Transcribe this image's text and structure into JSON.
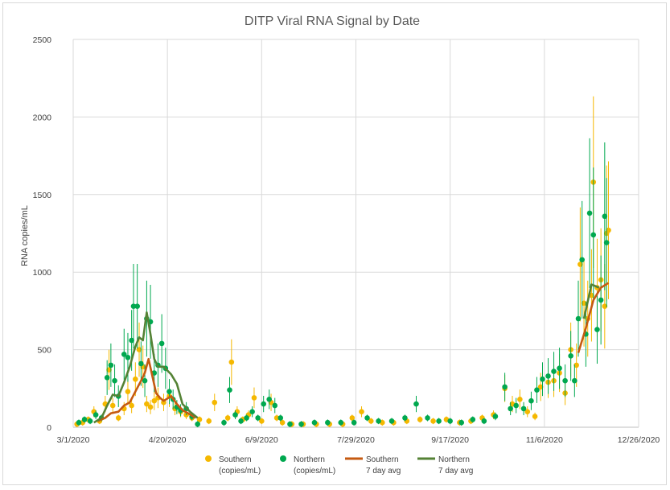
{
  "chart_data": {
    "type": "scatter",
    "title": "DITP Viral RNA Signal by Date",
    "xlabel": "",
    "ylabel": "RNA copies/mL",
    "ylim": [
      0,
      2500
    ],
    "xlim": [
      "2020-03-01",
      "2020-12-26"
    ],
    "grid": true,
    "legend_position": "bottom",
    "x_ticks": [
      "3/1/2020",
      "4/20/2020",
      "6/9/2020",
      "7/29/2020",
      "9/17/2020",
      "11/6/2020",
      "12/26/2020"
    ],
    "y_ticks": [
      "0",
      "500",
      "1000",
      "1500",
      "2000",
      "2500"
    ],
    "colors": {
      "southern": "#F5B800",
      "northern": "#00A84F",
      "southern_avg": "#C55A11",
      "northern_avg": "#548235"
    },
    "series": [
      {
        "name": "Southern (copies/mL)",
        "kind": "points",
        "points": [
          [
            "2020-03-03",
            20
          ],
          [
            "2020-03-06",
            30
          ],
          [
            "2020-03-09",
            50
          ],
          [
            "2020-03-12",
            100
          ],
          [
            "2020-03-15",
            40
          ],
          [
            "2020-03-18",
            150
          ],
          [
            "2020-03-20",
            370
          ],
          [
            "2020-03-22",
            140
          ],
          [
            "2020-03-25",
            60
          ],
          [
            "2020-03-28",
            120
          ],
          [
            "2020-03-30",
            230
          ],
          [
            "2020-04-01",
            140
          ],
          [
            "2020-04-03",
            310
          ],
          [
            "2020-04-05",
            500
          ],
          [
            "2020-04-07",
            390
          ],
          [
            "2020-04-09",
            150
          ],
          [
            "2020-04-11",
            130
          ],
          [
            "2020-04-13",
            170
          ],
          [
            "2020-04-15",
            190
          ],
          [
            "2020-04-18",
            160
          ],
          [
            "2020-04-21",
            200
          ],
          [
            "2020-04-24",
            120
          ],
          [
            "2020-04-27",
            100
          ],
          [
            "2020-04-30",
            80
          ],
          [
            "2020-05-03",
            60
          ],
          [
            "2020-05-07",
            50
          ],
          [
            "2020-05-12",
            40
          ],
          [
            "2020-05-15",
            160
          ],
          [
            "2020-05-22",
            60
          ],
          [
            "2020-05-24",
            420
          ],
          [
            "2020-05-27",
            100
          ],
          [
            "2020-05-30",
            50
          ],
          [
            "2020-06-02",
            80
          ],
          [
            "2020-06-05",
            190
          ],
          [
            "2020-06-09",
            40
          ],
          [
            "2020-06-14",
            160
          ],
          [
            "2020-06-17",
            60
          ],
          [
            "2020-06-20",
            30
          ],
          [
            "2020-06-25",
            20
          ],
          [
            "2020-07-01",
            20
          ],
          [
            "2020-07-08",
            20
          ],
          [
            "2020-07-15",
            20
          ],
          [
            "2020-07-22",
            20
          ],
          [
            "2020-07-27",
            60
          ],
          [
            "2020-08-01",
            100
          ],
          [
            "2020-08-06",
            40
          ],
          [
            "2020-08-12",
            30
          ],
          [
            "2020-08-18",
            30
          ],
          [
            "2020-08-25",
            40
          ],
          [
            "2020-09-01",
            50
          ],
          [
            "2020-09-08",
            40
          ],
          [
            "2020-09-15",
            50
          ],
          [
            "2020-09-22",
            30
          ],
          [
            "2020-09-28",
            40
          ],
          [
            "2020-10-04",
            60
          ],
          [
            "2020-10-10",
            80
          ],
          [
            "2020-10-16",
            250
          ],
          [
            "2020-10-20",
            150
          ],
          [
            "2020-10-24",
            180
          ],
          [
            "2020-10-28",
            100
          ],
          [
            "2020-11-01",
            70
          ],
          [
            "2020-11-04",
            260
          ],
          [
            "2020-11-08",
            290
          ],
          [
            "2020-11-11",
            300
          ],
          [
            "2020-11-14",
            350
          ],
          [
            "2020-11-17",
            220
          ],
          [
            "2020-11-20",
            500
          ],
          [
            "2020-11-23",
            400
          ],
          [
            "2020-11-25",
            1050
          ],
          [
            "2020-11-27",
            800
          ],
          [
            "2020-11-29",
            700
          ],
          [
            "2020-12-01",
            850
          ],
          [
            "2020-12-02",
            1580
          ],
          [
            "2020-12-04",
            900
          ],
          [
            "2020-12-06",
            950
          ],
          [
            "2020-12-08",
            780
          ],
          [
            "2020-12-09",
            1250
          ],
          [
            "2020-12-10",
            1270
          ]
        ]
      },
      {
        "name": "Northern (copies/mL)",
        "kind": "points",
        "points": [
          [
            "2020-03-04",
            30
          ],
          [
            "2020-03-07",
            50
          ],
          [
            "2020-03-10",
            40
          ],
          [
            "2020-03-13",
            80
          ],
          [
            "2020-03-16",
            60
          ],
          [
            "2020-03-19",
            320
          ],
          [
            "2020-03-21",
            400
          ],
          [
            "2020-03-23",
            300
          ],
          [
            "2020-03-25",
            200
          ],
          [
            "2020-03-28",
            470
          ],
          [
            "2020-03-30",
            450
          ],
          [
            "2020-04-01",
            560
          ],
          [
            "2020-04-02",
            780
          ],
          [
            "2020-04-04",
            780
          ],
          [
            "2020-04-06",
            410
          ],
          [
            "2020-04-08",
            300
          ],
          [
            "2020-04-09",
            700
          ],
          [
            "2020-04-11",
            680
          ],
          [
            "2020-04-13",
            350
          ],
          [
            "2020-04-15",
            400
          ],
          [
            "2020-04-17",
            540
          ],
          [
            "2020-04-19",
            380
          ],
          [
            "2020-04-21",
            230
          ],
          [
            "2020-04-23",
            180
          ],
          [
            "2020-04-25",
            130
          ],
          [
            "2020-04-27",
            110
          ],
          [
            "2020-04-30",
            120
          ],
          [
            "2020-05-03",
            70
          ],
          [
            "2020-05-06",
            20
          ],
          [
            "2020-05-20",
            30
          ],
          [
            "2020-05-23",
            240
          ],
          [
            "2020-05-26",
            80
          ],
          [
            "2020-05-29",
            40
          ],
          [
            "2020-06-01",
            60
          ],
          [
            "2020-06-04",
            100
          ],
          [
            "2020-06-07",
            60
          ],
          [
            "2020-06-10",
            150
          ],
          [
            "2020-06-13",
            180
          ],
          [
            "2020-06-16",
            140
          ],
          [
            "2020-06-19",
            60
          ],
          [
            "2020-06-24",
            20
          ],
          [
            "2020-06-30",
            20
          ],
          [
            "2020-07-07",
            30
          ],
          [
            "2020-07-14",
            30
          ],
          [
            "2020-07-21",
            30
          ],
          [
            "2020-07-28",
            30
          ],
          [
            "2020-08-04",
            60
          ],
          [
            "2020-08-10",
            40
          ],
          [
            "2020-08-17",
            40
          ],
          [
            "2020-08-24",
            60
          ],
          [
            "2020-08-30",
            150
          ],
          [
            "2020-09-05",
            60
          ],
          [
            "2020-09-11",
            40
          ],
          [
            "2020-09-17",
            40
          ],
          [
            "2020-09-23",
            30
          ],
          [
            "2020-09-29",
            50
          ],
          [
            "2020-10-05",
            40
          ],
          [
            "2020-10-11",
            70
          ],
          [
            "2020-10-16",
            260
          ],
          [
            "2020-10-19",
            120
          ],
          [
            "2020-10-22",
            140
          ],
          [
            "2020-10-26",
            120
          ],
          [
            "2020-10-30",
            170
          ],
          [
            "2020-11-02",
            240
          ],
          [
            "2020-11-05",
            310
          ],
          [
            "2020-11-08",
            330
          ],
          [
            "2020-11-11",
            360
          ],
          [
            "2020-11-14",
            380
          ],
          [
            "2020-11-17",
            300
          ],
          [
            "2020-11-20",
            460
          ],
          [
            "2020-11-22",
            300
          ],
          [
            "2020-11-24",
            700
          ],
          [
            "2020-11-26",
            1080
          ],
          [
            "2020-11-28",
            600
          ],
          [
            "2020-11-30",
            1380
          ],
          [
            "2020-12-02",
            1240
          ],
          [
            "2020-12-04",
            630
          ],
          [
            "2020-12-06",
            820
          ],
          [
            "2020-12-08",
            1360
          ],
          [
            "2020-12-09",
            1190
          ]
        ]
      },
      {
        "name": "Southern 7 day avg",
        "kind": "line",
        "points": [
          [
            "2020-03-14",
            40
          ],
          [
            "2020-03-18",
            60
          ],
          [
            "2020-03-21",
            90
          ],
          [
            "2020-03-25",
            100
          ],
          [
            "2020-03-28",
            140
          ],
          [
            "2020-03-31",
            160
          ],
          [
            "2020-04-03",
            230
          ],
          [
            "2020-04-06",
            300
          ],
          [
            "2020-04-08",
            350
          ],
          [
            "2020-04-10",
            440
          ],
          [
            "2020-04-12",
            330
          ],
          [
            "2020-04-14",
            220
          ],
          [
            "2020-04-16",
            190
          ],
          [
            "2020-04-18",
            170
          ],
          [
            "2020-04-22",
            200
          ],
          [
            "2020-04-25",
            150
          ],
          [
            "2020-04-28",
            110
          ],
          [
            "2020-05-01",
            90
          ],
          [
            "2020-05-05",
            60
          ],
          [
            "2020-05-10",
            40
          ],
          [
            "2020-05-15",
            30
          ],
          [
            "2020-05-20",
            70
          ],
          [
            "2020-05-25",
            120
          ],
          [
            "2020-05-30",
            80
          ],
          [
            "2020-06-04",
            80
          ],
          [
            "2020-06-10",
            60
          ],
          [
            "2020-06-15",
            40
          ],
          [
            "2020-06-22",
            25
          ],
          [
            "2020-07-01",
            20
          ],
          [
            "2020-07-15",
            20
          ],
          [
            "2020-07-29",
            35
          ],
          [
            "2020-08-10",
            35
          ],
          [
            "2020-08-25",
            40
          ],
          [
            "2020-09-08",
            45
          ],
          [
            "2020-09-22",
            40
          ],
          [
            "2020-10-04",
            50
          ],
          [
            "2020-10-12",
            110
          ],
          [
            "2020-10-18",
            170
          ],
          [
            "2020-10-24",
            160
          ],
          [
            "2020-10-30",
            130
          ],
          [
            "2020-11-05",
            200
          ],
          [
            "2020-11-12",
            270
          ],
          [
            "2020-11-18",
            320
          ],
          [
            "2020-11-24",
            480
          ],
          [
            "2020-11-28",
            640
          ],
          [
            "2020-12-02",
            820
          ],
          [
            "2020-12-06",
            900
          ],
          [
            "2020-12-10",
            930
          ]
        ]
      },
      {
        "name": "Northern 7 day avg",
        "kind": "line",
        "points": [
          [
            "2020-03-12",
            30
          ],
          [
            "2020-03-16",
            60
          ],
          [
            "2020-03-19",
            140
          ],
          [
            "2020-03-22",
            210
          ],
          [
            "2020-03-25",
            200
          ],
          [
            "2020-03-28",
            290
          ],
          [
            "2020-03-31",
            390
          ],
          [
            "2020-04-03",
            520
          ],
          [
            "2020-04-05",
            580
          ],
          [
            "2020-04-07",
            560
          ],
          [
            "2020-04-09",
            740
          ],
          [
            "2020-04-11",
            600
          ],
          [
            "2020-04-13",
            440
          ],
          [
            "2020-04-15",
            390
          ],
          [
            "2020-04-18",
            390
          ],
          [
            "2020-04-22",
            340
          ],
          [
            "2020-04-25",
            280
          ],
          [
            "2020-04-28",
            150
          ],
          [
            "2020-05-02",
            100
          ],
          [
            "2020-05-06",
            60
          ],
          [
            "2020-05-15",
            30
          ],
          [
            "2020-05-20",
            40
          ],
          [
            "2020-05-26",
            80
          ],
          [
            "2020-06-01",
            80
          ],
          [
            "2020-06-07",
            90
          ],
          [
            "2020-06-13",
            110
          ],
          [
            "2020-06-19",
            70
          ],
          [
            "2020-06-25",
            30
          ],
          [
            "2020-07-05",
            25
          ],
          [
            "2020-07-20",
            30
          ],
          [
            "2020-08-01",
            40
          ],
          [
            "2020-08-15",
            40
          ],
          [
            "2020-08-30",
            100
          ],
          [
            "2020-09-10",
            60
          ],
          [
            "2020-09-22",
            40
          ],
          [
            "2020-10-05",
            50
          ],
          [
            "2020-10-14",
            100
          ],
          [
            "2020-10-20",
            150
          ],
          [
            "2020-10-26",
            140
          ],
          [
            "2020-11-02",
            190
          ],
          [
            "2020-11-10",
            280
          ],
          [
            "2020-11-16",
            330
          ],
          [
            "2020-11-22",
            450
          ],
          [
            "2020-11-27",
            700
          ],
          [
            "2020-12-01",
            920
          ],
          [
            "2020-12-05",
            900
          ],
          [
            "2020-12-10",
            950
          ]
        ]
      }
    ],
    "legend": [
      {
        "key": "southern",
        "kind": "dot",
        "line1": "Southern",
        "line2": "(copies/mL)"
      },
      {
        "key": "northern",
        "kind": "dot",
        "line1": "Northern",
        "line2": "(copies/mL)"
      },
      {
        "key": "southern_avg",
        "kind": "line",
        "line1": "Southern",
        "line2": "7 day avg"
      },
      {
        "key": "northern_avg",
        "kind": "line",
        "line1": "Northern",
        "line2": "7 day avg"
      }
    ]
  }
}
